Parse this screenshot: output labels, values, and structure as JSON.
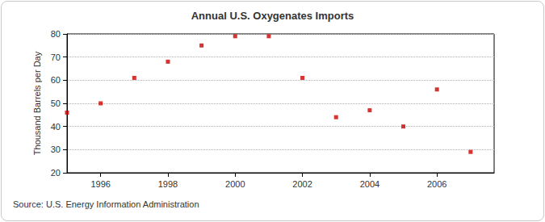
{
  "chart_data": {
    "type": "scatter",
    "title": "Annual U.S. Oxygenates Imports",
    "y_label": "Thousand Barrels per Day",
    "source": "Source: U.S. Energy Information Administration",
    "x": [
      1995,
      1996,
      1997,
      1998,
      1999,
      2000,
      2001,
      2002,
      2003,
      2004,
      2005,
      2006,
      2007
    ],
    "values": [
      46,
      50,
      61,
      68,
      75,
      79,
      79,
      61,
      44,
      47,
      40,
      56,
      29
    ],
    "color": "#cc0000",
    "marker": "square",
    "xlim": [
      1995,
      2007.7
    ],
    "xticks": [
      1996,
      1998,
      2000,
      2002,
      2004,
      2006
    ],
    "ylim": [
      20,
      80
    ],
    "yticks": [
      20,
      30,
      40,
      50,
      60,
      70,
      80
    ],
    "grid": true
  }
}
